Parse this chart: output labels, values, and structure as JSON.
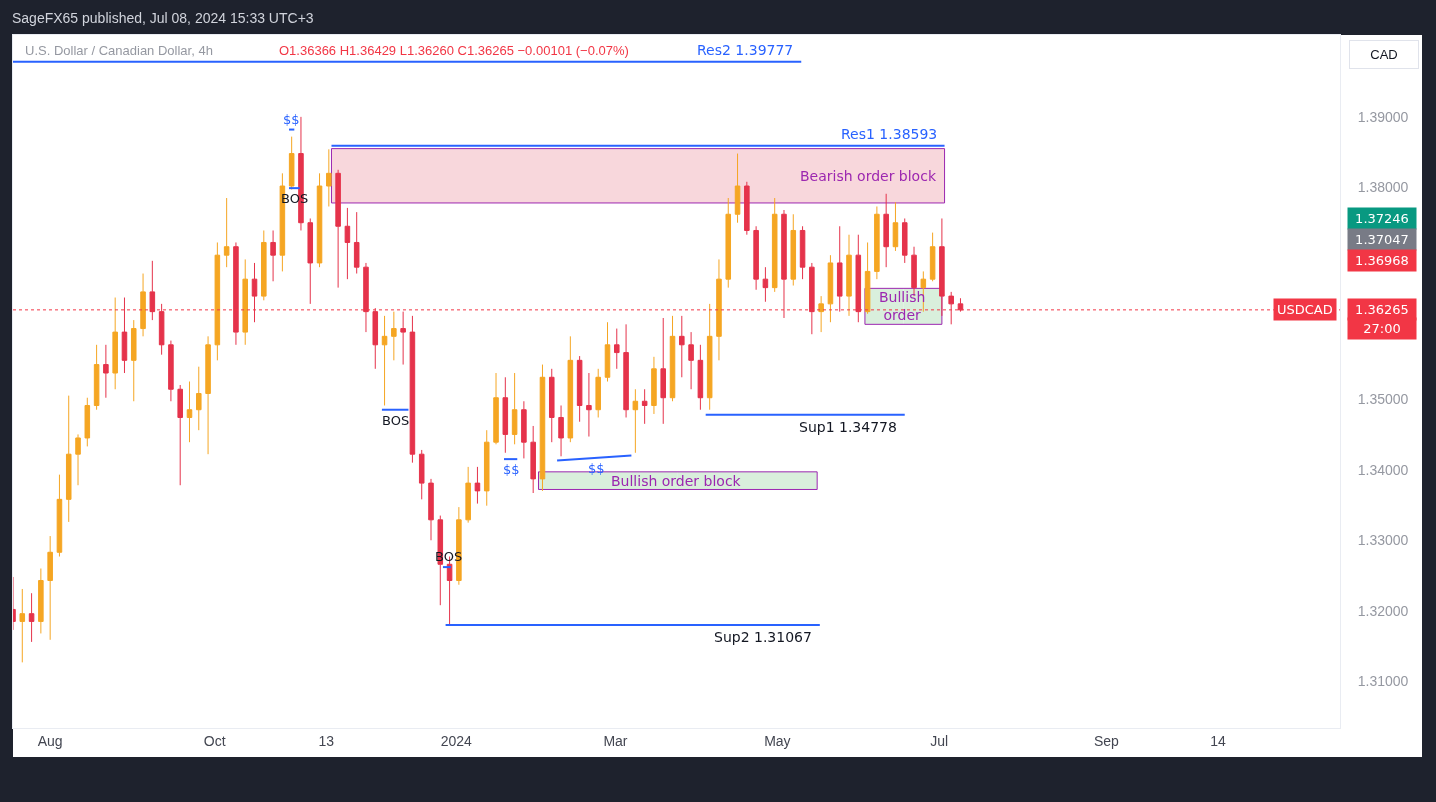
{
  "chart_data": {
    "type": "candlestick",
    "title": "SageFX65 published, Jul 08, 2024 15:33 UTC+3",
    "subtitle": "U.S. Dollar / Canadian Dollar, 4h",
    "ylabel": "CAD",
    "x": [
      "2023-07-18",
      "2023-07-21T12:00",
      "2023-07-25",
      "2023-07-28T12:00",
      "2023-08-01",
      "2023-08-04T12:00",
      "2023-08-08",
      "2023-08-11T12:00",
      "2023-08-15",
      "2023-08-18T12:00",
      "2023-08-22",
      "2023-08-25T12:00",
      "2023-08-29",
      "2023-09-01T12:00",
      "2023-09-05",
      "2023-09-08T12:00",
      "2023-09-12",
      "2023-09-15T12:00",
      "2023-09-19",
      "2023-09-22T12:00",
      "2023-09-26",
      "2023-09-29T12:00",
      "2023-10-03",
      "2023-10-06T12:00",
      "2023-10-10",
      "2023-10-13T12:00",
      "2023-10-17",
      "2023-10-20T12:00",
      "2023-10-24",
      "2023-10-27T12:00",
      "2023-10-31",
      "2023-11-03T12:00",
      "2023-11-07",
      "2023-11-10T12:00",
      "2023-11-14",
      "2023-11-17T12:00",
      "2023-11-21",
      "2023-11-24T12:00",
      "2023-11-28",
      "2023-12-01T12:00",
      "2023-12-05",
      "2023-12-08T12:00",
      "2023-12-12",
      "2023-12-15T12:00",
      "2023-12-19",
      "2023-12-22T12:00",
      "2023-12-26",
      "2023-12-29T12:00",
      "2024-01-02",
      "2024-01-05T12:00",
      "2024-01-09",
      "2024-01-12T12:00",
      "2024-01-16",
      "2024-01-19T12:00",
      "2024-01-23",
      "2024-01-26T12:00",
      "2024-01-30",
      "2024-02-02T12:00",
      "2024-02-06",
      "2024-02-09T12:00",
      "2024-02-13",
      "2024-02-16T12:00",
      "2024-02-20",
      "2024-02-23T12:00",
      "2024-02-27",
      "2024-03-01T12:00",
      "2024-03-05",
      "2024-03-08T12:00",
      "2024-03-12",
      "2024-03-15T12:00",
      "2024-03-19",
      "2024-03-22T12:00",
      "2024-03-26",
      "2024-03-29T12:00",
      "2024-04-02",
      "2024-04-05T12:00",
      "2024-04-09",
      "2024-04-12T12:00",
      "2024-04-16",
      "2024-04-19T12:00",
      "2024-04-23",
      "2024-04-26T12:00",
      "2024-04-30",
      "2024-05-03T12:00",
      "2024-05-07",
      "2024-05-10T12:00",
      "2024-05-14",
      "2024-05-17T12:00",
      "2024-05-21",
      "2024-05-24T12:00",
      "2024-05-28",
      "2024-05-31T12:00",
      "2024-06-04",
      "2024-06-07T12:00",
      "2024-06-11",
      "2024-06-14T12:00",
      "2024-06-18",
      "2024-06-21T12:00",
      "2024-06-25",
      "2024-06-28T12:00",
      "2024-07-02",
      "2024-07-05T12:00",
      "2024-07-09"
    ],
    "ohlc": [
      [
        1.3202,
        1.3248,
        1.3173,
        1.3185
      ],
      [
        1.3185,
        1.3231,
        1.3127,
        1.3196
      ],
      [
        1.3196,
        1.3225,
        1.3156,
        1.3185
      ],
      [
        1.3185,
        1.326,
        1.3168,
        1.3243
      ],
      [
        1.3243,
        1.3306,
        1.3159,
        1.3283
      ],
      [
        1.3283,
        1.3393,
        1.3277,
        1.3358
      ],
      [
        1.3358,
        1.3505,
        1.3326,
        1.3422
      ],
      [
        1.3422,
        1.345,
        1.3378,
        1.3445
      ],
      [
        1.3445,
        1.3502,
        1.3433,
        1.3491
      ],
      [
        1.3491,
        1.3577,
        1.3485,
        1.3549
      ],
      [
        1.3549,
        1.3577,
        1.3502,
        1.3537
      ],
      [
        1.3537,
        1.3644,
        1.3514,
        1.3595
      ],
      [
        1.3595,
        1.3644,
        1.3537,
        1.3555
      ],
      [
        1.3555,
        1.3612,
        1.3497,
        1.36
      ],
      [
        1.36,
        1.3678,
        1.3589,
        1.3652
      ],
      [
        1.3652,
        1.3696,
        1.3612,
        1.3624
      ],
      [
        1.3624,
        1.3635,
        1.3563,
        1.3577
      ],
      [
        1.3577,
        1.3583,
        1.3497,
        1.3514
      ],
      [
        1.3514,
        1.352,
        1.3378,
        1.3474
      ],
      [
        1.3474,
        1.3525,
        1.3439,
        1.3485
      ],
      [
        1.3485,
        1.3546,
        1.3456,
        1.3508
      ],
      [
        1.3508,
        1.3589,
        1.3422,
        1.3577
      ],
      [
        1.3577,
        1.3722,
        1.3555,
        1.3704
      ],
      [
        1.3704,
        1.3785,
        1.3687,
        1.3716
      ],
      [
        1.3716,
        1.3722,
        1.3577,
        1.3595
      ],
      [
        1.3595,
        1.3698,
        1.3577,
        1.367
      ],
      [
        1.367,
        1.3693,
        1.3609,
        1.3646
      ],
      [
        1.3646,
        1.3739,
        1.364,
        1.3722
      ],
      [
        1.3722,
        1.3739,
        1.3667,
        1.3704
      ],
      [
        1.3704,
        1.382,
        1.3681,
        1.3802
      ],
      [
        1.3802,
        1.3872,
        1.3797,
        1.3848
      ],
      [
        1.3848,
        1.39,
        1.3739,
        1.375
      ],
      [
        1.375,
        1.3756,
        1.3635,
        1.3693
      ],
      [
        1.3693,
        1.382,
        1.3687,
        1.3802
      ],
      [
        1.3802,
        1.3854,
        1.3773,
        1.382
      ],
      [
        1.382,
        1.3825,
        1.3658,
        1.3745
      ],
      [
        1.3745,
        1.3771,
        1.367,
        1.3722
      ],
      [
        1.3722,
        1.3765,
        1.3678,
        1.3687
      ],
      [
        1.3687,
        1.3693,
        1.3595,
        1.3624
      ],
      [
        1.3624,
        1.3629,
        1.3543,
        1.3577
      ],
      [
        1.3577,
        1.3618,
        1.3491,
        1.3589
      ],
      [
        1.3589,
        1.3624,
        1.3555,
        1.36
      ],
      [
        1.36,
        1.3624,
        1.3549,
        1.3595
      ],
      [
        1.3595,
        1.3618,
        1.341,
        1.3422
      ],
      [
        1.3422,
        1.3428,
        1.3358,
        1.3381
      ],
      [
        1.3381,
        1.3387,
        1.33,
        1.3329
      ],
      [
        1.3329,
        1.3335,
        1.3208,
        1.3266
      ],
      [
        1.3266,
        1.3277,
        1.3179,
        1.3243
      ],
      [
        1.3243,
        1.3347,
        1.3237,
        1.3329
      ],
      [
        1.3329,
        1.3404,
        1.3325,
        1.3381
      ],
      [
        1.3381,
        1.3404,
        1.3352,
        1.337
      ],
      [
        1.337,
        1.3456,
        1.3349,
        1.3439
      ],
      [
        1.3439,
        1.3537,
        1.3436,
        1.3502
      ],
      [
        1.3502,
        1.3531,
        1.3424,
        1.345
      ],
      [
        1.345,
        1.3537,
        1.3436,
        1.3485
      ],
      [
        1.3485,
        1.3497,
        1.3416,
        1.3439
      ],
      [
        1.3439,
        1.3462,
        1.3367,
        1.3387
      ],
      [
        1.3387,
        1.3549,
        1.337,
        1.3531
      ],
      [
        1.3531,
        1.3543,
        1.3439,
        1.3474
      ],
      [
        1.3474,
        1.3491,
        1.3419,
        1.3445
      ],
      [
        1.3445,
        1.3589,
        1.3439,
        1.3555
      ],
      [
        1.3555,
        1.3561,
        1.3468,
        1.3491
      ],
      [
        1.3491,
        1.3537,
        1.3447,
        1.3485
      ],
      [
        1.3485,
        1.3543,
        1.3474,
        1.3531
      ],
      [
        1.3531,
        1.3609,
        1.3525,
        1.3577
      ],
      [
        1.3577,
        1.36,
        1.3543,
        1.3566
      ],
      [
        1.3566,
        1.3606,
        1.3474,
        1.3485
      ],
      [
        1.3485,
        1.3514,
        1.3424,
        1.3497
      ],
      [
        1.3497,
        1.3514,
        1.3465,
        1.3491
      ],
      [
        1.3491,
        1.356,
        1.3479,
        1.3543
      ],
      [
        1.3543,
        1.3615,
        1.3465,
        1.3502
      ],
      [
        1.3502,
        1.3618,
        1.3497,
        1.3589
      ],
      [
        1.3589,
        1.3618,
        1.3531,
        1.3577
      ],
      [
        1.3577,
        1.3595,
        1.3514,
        1.3555
      ],
      [
        1.3555,
        1.3577,
        1.3485,
        1.3502
      ],
      [
        1.3502,
        1.3635,
        1.3485,
        1.3589
      ],
      [
        1.3589,
        1.3698,
        1.3555,
        1.367
      ],
      [
        1.367,
        1.3785,
        1.3658,
        1.3762
      ],
      [
        1.3762,
        1.3848,
        1.375,
        1.3802
      ],
      [
        1.3802,
        1.3808,
        1.3733,
        1.3739
      ],
      [
        1.3739,
        1.3745,
        1.3655,
        1.367
      ],
      [
        1.367,
        1.3687,
        1.3638,
        1.3658
      ],
      [
        1.3658,
        1.3785,
        1.3652,
        1.3762
      ],
      [
        1.3762,
        1.3768,
        1.3615,
        1.367
      ],
      [
        1.367,
        1.3762,
        1.3661,
        1.3739
      ],
      [
        1.3739,
        1.3745,
        1.367,
        1.3687
      ],
      [
        1.3687,
        1.3693,
        1.3592,
        1.3624
      ],
      [
        1.3624,
        1.3646,
        1.3595,
        1.3635
      ],
      [
        1.3635,
        1.3704,
        1.3609,
        1.3693
      ],
      [
        1.3693,
        1.3745,
        1.3624,
        1.3646
      ],
      [
        1.3646,
        1.3733,
        1.3618,
        1.3704
      ],
      [
        1.3704,
        1.3733,
        1.3609,
        1.3624
      ],
      [
        1.3624,
        1.3722,
        1.3621,
        1.3681
      ],
      [
        1.3681,
        1.3773,
        1.367,
        1.3762
      ],
      [
        1.3762,
        1.3791,
        1.3687,
        1.3716
      ],
      [
        1.3716,
        1.3779,
        1.371,
        1.375
      ],
      [
        1.375,
        1.3756,
        1.3693,
        1.3704
      ],
      [
        1.3704,
        1.3716,
        1.3646,
        1.3658
      ],
      [
        1.3658,
        1.3681,
        1.3624,
        1.367
      ],
      [
        1.367,
        1.3736,
        1.3667,
        1.3716
      ],
      [
        1.3716,
        1.3756,
        1.3618,
        1.3646
      ],
      [
        1.3646,
        1.3652,
        1.3606,
        1.3635
      ],
      [
        1.3635,
        1.3643,
        1.3624,
        1.36265
      ]
    ],
    "colors": [
      "#e5334b",
      "#f5a623",
      "#e5334b",
      "#f5a623",
      "#f5a623",
      "#f5a623",
      "#f5a623",
      "#f5a623",
      "#f5a623",
      "#f5a623",
      "#e5334b",
      "#f5a623",
      "#e5334b",
      "#f5a623",
      "#f5a623",
      "#e5334b",
      "#e5334b",
      "#e5334b",
      "#e5334b",
      "#f5a623",
      "#f5a623",
      "#f5a623",
      "#f5a623",
      "#f5a623",
      "#e5334b",
      "#f5a623",
      "#e5334b",
      "#f5a623",
      "#e5334b",
      "#f5a623",
      "#f5a623",
      "#e5334b",
      "#e5334b",
      "#f5a623",
      "#f5a623",
      "#e5334b",
      "#e5334b",
      "#e5334b",
      "#e5334b",
      "#e5334b",
      "#f5a623",
      "#f5a623",
      "#e5334b",
      "#e5334b",
      "#e5334b",
      "#e5334b",
      "#e5334b",
      "#e5334b",
      "#f5a623",
      "#f5a623",
      "#e5334b",
      "#f5a623",
      "#f5a623",
      "#e5334b",
      "#f5a623",
      "#e5334b",
      "#e5334b",
      "#f5a623",
      "#e5334b",
      "#e5334b",
      "#f5a623",
      "#e5334b",
      "#e5334b",
      "#f5a623",
      "#f5a623",
      "#e5334b",
      "#e5334b",
      "#f5a623",
      "#e5334b",
      "#f5a623",
      "#e5334b",
      "#f5a623",
      "#e5334b",
      "#e5334b",
      "#e5334b",
      "#f5a623",
      "#f5a623",
      "#f5a623",
      "#f5a623",
      "#e5334b",
      "#e5334b",
      "#e5334b",
      "#f5a623",
      "#e5334b",
      "#f5a623",
      "#e5334b",
      "#e5334b",
      "#f5a623",
      "#f5a623",
      "#e5334b",
      "#f5a623",
      "#e5334b",
      "#f5a623",
      "#f5a623",
      "#e5334b",
      "#f5a623",
      "#e5334b",
      "#e5334b",
      "#f5a623",
      "#f5a623",
      "#e5334b",
      "#e5334b",
      "#e5334b"
    ],
    "series": [
      {
        "type": "line",
        "name": "Bearish order block",
        "x": [
          "2023-11-15",
          "2024-07-03"
        ],
        "values": [
          null,
          null
        ],
        "lower": [
          1.3778,
          1.3778
        ],
        "upper": [
          1.3855,
          1.3855
        ],
        "color": "#9c27b0",
        "colors": [
          "#f8d7dc",
          "#f8d7dc"
        ]
      },
      {
        "type": "line",
        "name": "Bullish order block",
        "x": [
          "2024-02-01",
          "2024-05-16"
        ],
        "values": [
          null,
          null
        ],
        "lower": [
          1.3372,
          1.3372
        ],
        "upper": [
          1.3397,
          1.3397
        ],
        "color": "#9c27b0",
        "colors": [
          "#d9efdc",
          "#d9efdc"
        ]
      },
      {
        "type": "line",
        "name": "Bullish order",
        "x": [
          "2024-06-03",
          "2024-07-02"
        ],
        "values": [
          null,
          null
        ],
        "lower": [
          1.3606,
          1.3606
        ],
        "upper": [
          1.3657,
          1.3657
        ],
        "color": "#9c27b0",
        "colors": [
          "#d9efdc",
          "#d9efdc"
        ]
      },
      {
        "type": "line",
        "name": "Res2 1.39777",
        "x": [
          "2023-07-18",
          "2024-05-10"
        ],
        "values": [
          1.3978,
          1.3978
        ],
        "color": "#2962ff"
      },
      {
        "type": "line",
        "name": "Res1 1.38593",
        "x": [
          "2023-11-15",
          "2024-07-03"
        ],
        "values": [
          1.3859,
          1.3859
        ],
        "color": "#2962ff"
      },
      {
        "type": "line",
        "name": "Sup1 1.34778",
        "x": [
          "2024-04-04",
          "2024-06-18"
        ],
        "values": [
          1.3478,
          1.3478
        ],
        "color": "#2962ff"
      },
      {
        "type": "line",
        "name": "Sup2 1.31067",
        "x": [
          "2023-12-28",
          "2024-05-17"
        ],
        "values": [
          1.318,
          1.318
        ],
        "color": "#2962ff"
      },
      {
        "type": "line",
        "x": [
          "2023-10-30",
          "2023-11-01"
        ],
        "values": [
          1.3882,
          1.3882
        ],
        "color": "#2962ff"
      },
      {
        "type": "line",
        "x": [
          "2023-10-30",
          "2023-11-03"
        ],
        "values": [
          1.3799,
          1.3799
        ],
        "color": "#2962ff"
      },
      {
        "type": "line",
        "x": [
          "2023-12-04",
          "2023-12-14"
        ],
        "values": [
          1.3485,
          1.3485
        ],
        "color": "#2962ff"
      },
      {
        "type": "line",
        "x": [
          "2023-12-27",
          "2023-12-30"
        ],
        "values": [
          1.3262,
          1.3262
        ],
        "color": "#2962ff"
      },
      {
        "type": "line",
        "x": [
          "2024-01-19",
          "2024-01-24"
        ],
        "values": [
          1.3415,
          1.3415
        ],
        "color": "#2962ff"
      },
      {
        "type": "line",
        "x": [
          "2024-02-08",
          "2024-03-07"
        ],
        "values": [
          1.3413,
          1.342
        ],
        "color": "#2962ff"
      }
    ],
    "annotations": [
      {
        "text": "$$",
        "x": "2023-10-31",
        "y": 1.3882
      },
      {
        "text": "BOS",
        "x": "2023-11-01",
        "y": 1.3799
      },
      {
        "text": "BOS",
        "x": "2023-12-09",
        "y": 1.3485
      },
      {
        "text": "BOS",
        "x": "2023-12-29",
        "y": 1.3262
      },
      {
        "text": "$$",
        "x": "2024-01-22",
        "y": 1.3415
      },
      {
        "text": "$$",
        "x": "2024-02-23",
        "y": 1.3417
      },
      "O1.36366 H1.36429 L1.36260 C1.36265 −0.00101 (−0.07%)",
      "1.37246",
      "1.37047",
      "1.36968",
      "1.36265",
      "27:00"
    ],
    "ref_lines": [
      {
        "axis": "y",
        "value": 1.36265,
        "label": "USDCAD",
        "color": "#f23645",
        "line_style": "dotted"
      }
    ],
    "xlim": [
      "2023-07-18",
      "2024-11-29"
    ],
    "ylim": [
      1.3034,
      1.4016
    ],
    "xticks": [
      {
        "value": "2023-08-01",
        "label": "Aug"
      },
      {
        "value": "2023-10-02",
        "label": "Oct"
      },
      {
        "value": "2023-11-13",
        "label": "13"
      },
      {
        "value": "2024-01-01",
        "label": "2024"
      },
      {
        "value": "2024-03-01",
        "label": "Mar"
      },
      {
        "value": "2024-05-01",
        "label": "May"
      },
      {
        "value": "2024-07-01",
        "label": "Jul"
      },
      {
        "value": "2024-09-02",
        "label": "Sep"
      },
      {
        "value": "2024-10-14",
        "label": "14"
      }
    ],
    "yticks": [
      {
        "value": 1.31,
        "label": "1.31000"
      },
      {
        "value": 1.32,
        "label": "1.32000"
      },
      {
        "value": 1.33,
        "label": "1.33000"
      },
      {
        "value": 1.34,
        "label": "1.34000"
      },
      {
        "value": 1.35,
        "label": "1.35000"
      },
      {
        "value": 1.38,
        "label": "1.38000"
      },
      {
        "value": 1.39,
        "label": "1.39000"
      }
    ]
  }
}
